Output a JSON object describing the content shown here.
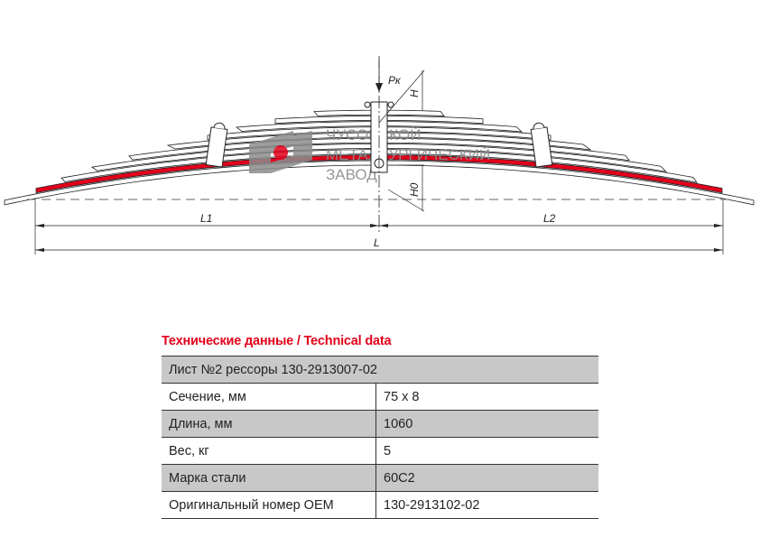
{
  "drawing": {
    "labels": {
      "force": "Pк",
      "height": "H",
      "height0": "H0",
      "l1": "L1",
      "l2": "L2",
      "l": "L"
    },
    "watermark": {
      "line1": "ЧУСОВСКОЙ",
      "line2": "МЕТАЛЛУРГИЧЕСКИЙ",
      "line3": "ЗАВОД"
    },
    "colors": {
      "highlighted_leaf": "#e3001b",
      "logo_gray": "#8c8c8c"
    }
  },
  "tech": {
    "title": "Технические данные / Technical data",
    "header": "Лист №2 рессоры 130-2913007-02",
    "rows": [
      {
        "label": "Сечение, мм",
        "value": "75 x 8"
      },
      {
        "label": "Длина, мм",
        "value": "1060"
      },
      {
        "label": "Вес, кг",
        "value": "5"
      },
      {
        "label": "Марка стали",
        "value": "60С2"
      },
      {
        "label": "Оригинальный номер OEM",
        "value": "130-2913102-02"
      }
    ]
  }
}
